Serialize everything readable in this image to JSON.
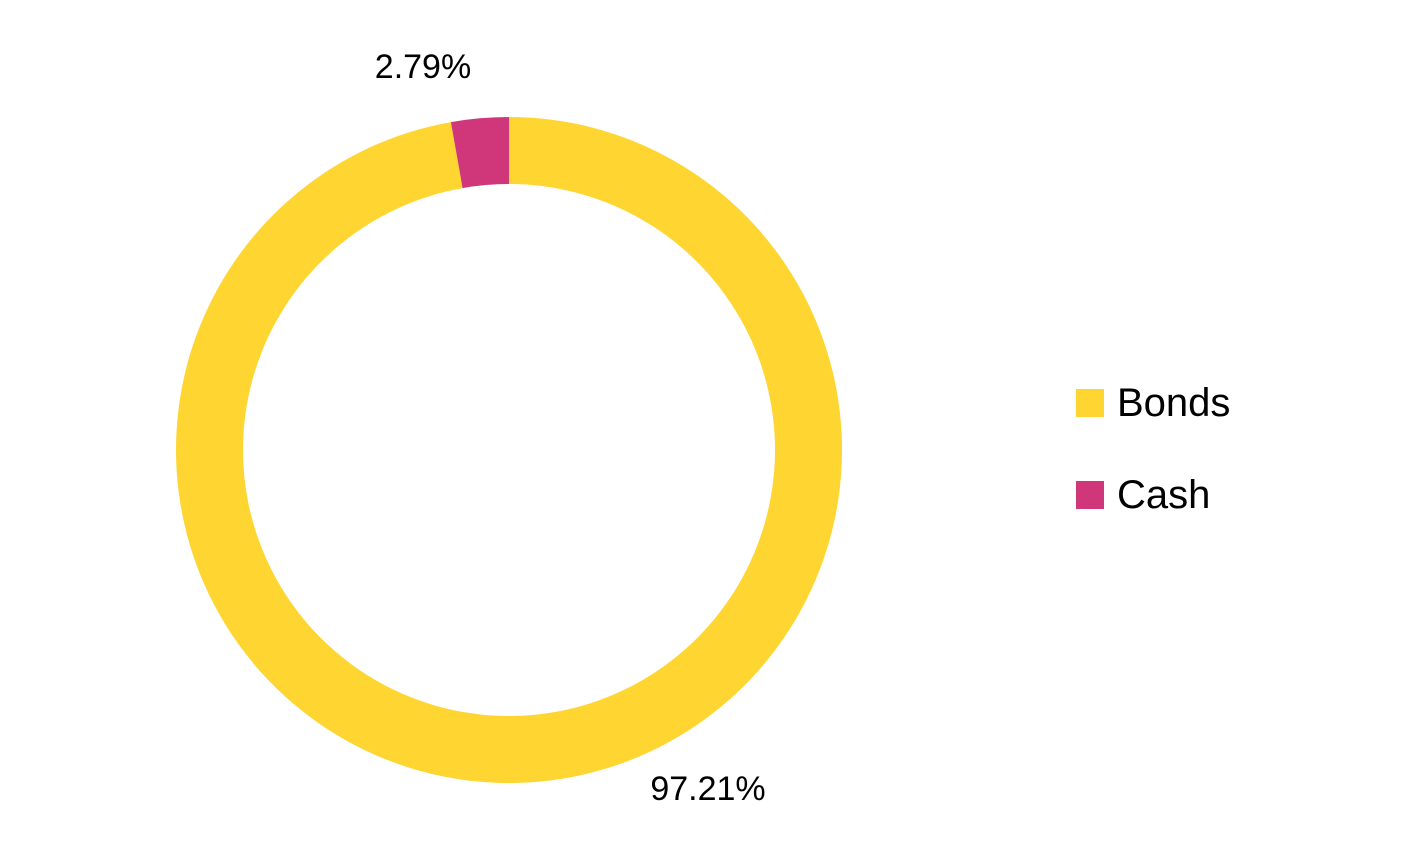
{
  "chart_data": {
    "type": "pie",
    "variant": "donut",
    "title": "",
    "categories": [
      "Bonds",
      "Cash"
    ],
    "values": [
      97.21,
      2.79
    ],
    "data_labels": [
      "97.21%",
      "2.79%"
    ],
    "units": "%",
    "colors": [
      "#FED531",
      "#D0367A"
    ],
    "legend": {
      "placement": "right",
      "entries": [
        "Bonds",
        "Cash"
      ]
    }
  }
}
